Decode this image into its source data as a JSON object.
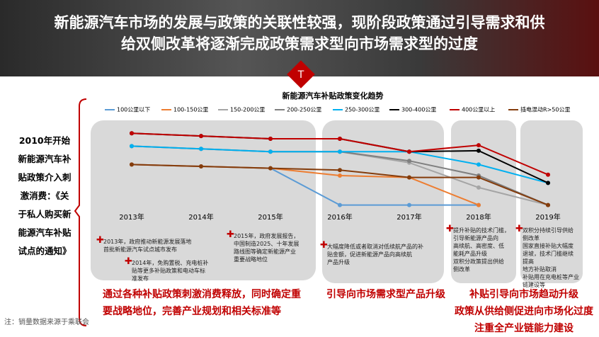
{
  "header": {
    "title_lines": [
      "新能源汽车市场的发展与政策的关联性较强，现阶段政策通过引导需求和供",
      "给双侧改革将逐渐完成政策需求型向市场需求型的过度"
    ]
  },
  "side_text": [
    "2010年开始",
    "新能源汽车补",
    "贴政策介入刺",
    "激消费：《关",
    "于私人购买新",
    "能源汽车补贴",
    "试点的通知》"
  ],
  "chart_data": {
    "type": "line",
    "title": "新能源汽车补贴政策变化趋势",
    "categories": [
      "2013年",
      "2014年",
      "2015年",
      "2016年",
      "2017年",
      "2018年",
      "2019年"
    ],
    "ylim": [
      0,
      100
    ],
    "legend": "top",
    "series": [
      {
        "name": "100公里以下",
        "color": "#5b9bd5",
        "values": [
          52,
          50,
          48,
          8,
          8,
          8,
          null
        ]
      },
      {
        "name": "100-150公里",
        "color": "#ed7d31",
        "values": [
          52,
          50,
          48,
          40,
          38,
          8,
          null
        ]
      },
      {
        "name": "150-200公里",
        "color": "#a5a5a5",
        "values": [
          72,
          69,
          66,
          66,
          54,
          27,
          8
        ]
      },
      {
        "name": "200-250公里",
        "color": "#7f7f7f",
        "values": [
          72,
          69,
          66,
          66,
          56,
          40,
          8
        ]
      },
      {
        "name": "250-300公里",
        "color": "#00b0f0",
        "values": [
          72,
          69,
          66,
          66,
          66,
          52,
          32
        ]
      },
      {
        "name": "300-400公里",
        "color": "#000000",
        "values": [
          86,
          83,
          80,
          80,
          66,
          67,
          32
        ]
      },
      {
        "name": "400公里以上",
        "color": "#c00000",
        "values": [
          86,
          83,
          80,
          80,
          66,
          73,
          41
        ]
      },
      {
        "name": "插电混动R>50公里",
        "color": "#843c0c",
        "values": [
          52,
          50,
          48,
          46,
          38,
          38,
          8
        ]
      }
    ]
  },
  "notes": [
    {
      "lines": [
        "2013年，政府推动新能源发展落地",
        "首批新能源汽车试点城市发布"
      ]
    },
    {
      "lines": [
        "2014年，免购置税、充电桩补",
        "贴等更多补贴政策和电动车标",
        "准发布"
      ]
    },
    {
      "lines": [
        "2015年，政府发展报告，",
        "中国制造2025、十年发展",
        "路线图等确定新能源产业",
        "重要战略地位"
      ]
    },
    {
      "lines": [
        "大幅度降低或者取消对低续航产品的补",
        "贴金额，促进新能源产品向高续航",
        "产品升级"
      ]
    },
    {
      "lines": [
        "提升补贴的技术门槛，",
        "引导新能源产品向",
        "高续航、高密度、低",
        "能耗产品升级",
        "双积分政策提出供给",
        "侧改革"
      ]
    },
    {
      "lines": [
        "双积分持续引导供给",
        "侧改革",
        "国家直接补贴大幅度",
        "退坡，技术门槛继续",
        "提高",
        "地方补贴取消",
        "补贴用在充电桩等产业",
        "链建设等"
      ]
    }
  ],
  "captions": [
    {
      "lines": [
        "通过各种补贴政策刺激消费释放，同时确定重",
        "要战略地位，完善产业规划和相关标准等"
      ]
    },
    {
      "lines": [
        "引导向市场需求型产品升级"
      ]
    },
    {
      "lines": [
        "补贴引导向市场趋动升级",
        "政策从供给侧促进向市场化过度",
        "注重全产业链能力建设"
      ]
    }
  ],
  "footer": "注：销量数据来源于乘联会"
}
